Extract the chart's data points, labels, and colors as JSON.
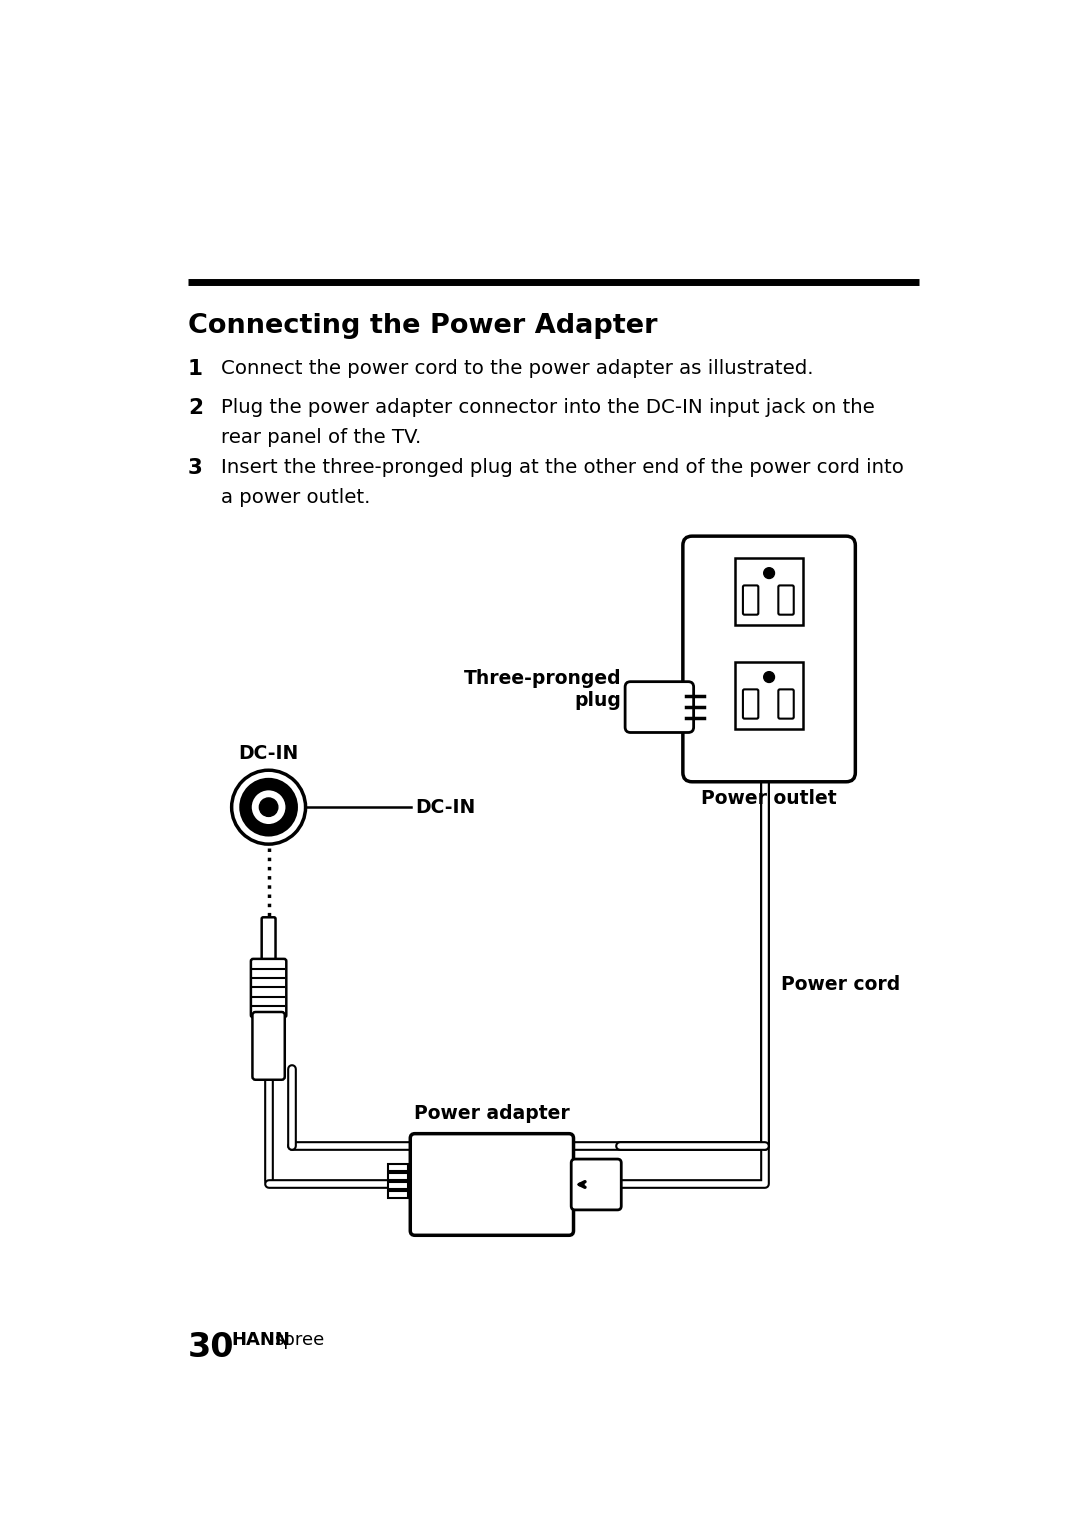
{
  "title": "Connecting the Power Adapter",
  "line1_num": "1",
  "line1_text": "Connect the power cord to the power adapter as illustrated.",
  "line2_num": "2",
  "line2_text": "Plug the power adapter connector into the DC-IN input jack on the\nrear panel of the TV.",
  "line3_num": "3",
  "line3_text": "Insert the three-pronged plug at the other end of the power cord into\na power outlet.",
  "label_dc_in_top": "DC-IN",
  "label_dc_in_right": "DC-IN",
  "label_three_pronged": "Three-pronged\nplug",
  "label_power_outlet": "Power outlet",
  "label_power_cord": "Power cord",
  "label_power_adapter": "Power adapter",
  "page_num": "30",
  "brand_hann": "HANN",
  "brand_spree": "spree",
  "bg_color": "#ffffff",
  "text_color": "#000000"
}
